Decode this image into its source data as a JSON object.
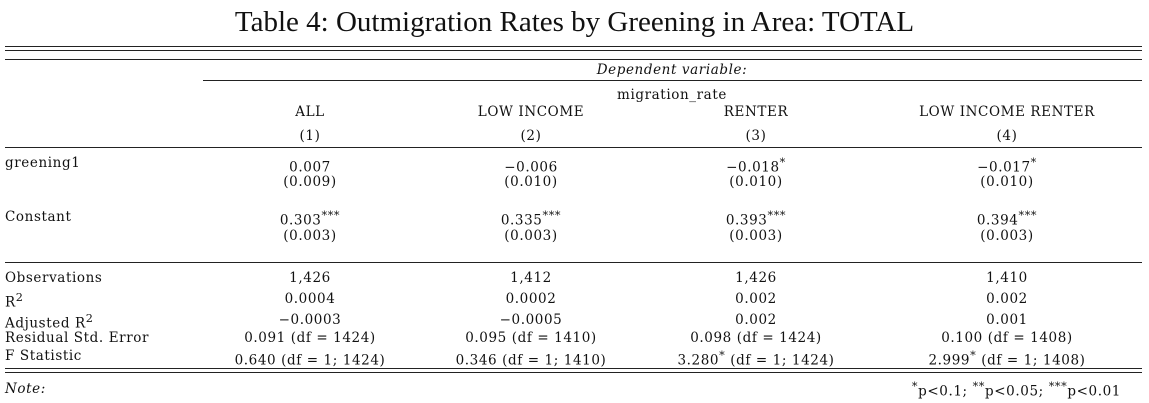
{
  "title": "Table 4: Outmigration Rates by Greening in Area: TOTAL",
  "dependent_variable_label": "Dependent variable:",
  "dependent_variable": "migration_rate",
  "columns": [
    {
      "name": "ALL",
      "number": "(1)"
    },
    {
      "name": "LOW INCOME",
      "number": "(2)"
    },
    {
      "name": "RENTER",
      "number": "(3)"
    },
    {
      "name": "LOW INCOME RENTER",
      "number": "(4)"
    }
  ],
  "coefficients": [
    {
      "label": "greening1",
      "estimates": [
        {
          "value": "0.007",
          "stars": "",
          "se": "(0.009)"
        },
        {
          "value": "−0.006",
          "stars": "",
          "se": "(0.010)"
        },
        {
          "value": "−0.018",
          "stars": "*",
          "se": "(0.010)"
        },
        {
          "value": "−0.017",
          "stars": "*",
          "se": "(0.010)"
        }
      ]
    },
    {
      "label": "Constant",
      "estimates": [
        {
          "value": "0.303",
          "stars": "***",
          "se": "(0.003)"
        },
        {
          "value": "0.335",
          "stars": "***",
          "se": "(0.003)"
        },
        {
          "value": "0.393",
          "stars": "***",
          "se": "(0.003)"
        },
        {
          "value": "0.394",
          "stars": "***",
          "se": "(0.003)"
        }
      ]
    }
  ],
  "statistics": [
    {
      "label": "Observations",
      "sup": "",
      "values": [
        "1,426",
        "1,412",
        "1,426",
        "1,410"
      ]
    },
    {
      "label": "R",
      "sup": "2",
      "values": [
        "0.0004",
        "0.0002",
        "0.002",
        "0.002"
      ]
    },
    {
      "label": "Adjusted R",
      "sup": "2",
      "values": [
        "−0.0003",
        "−0.0005",
        "0.002",
        "0.001"
      ]
    },
    {
      "label": "Residual Std. Error",
      "sup": "",
      "values": [
        "0.091 (df = 1424)",
        "0.095 (df = 1410)",
        "0.098 (df = 1424)",
        "0.100 (df = 1408)"
      ]
    },
    {
      "label": "F Statistic",
      "sup": "",
      "values": [
        {
          "value": "0.640",
          "stars": "",
          "rest": " (df = 1; 1424)"
        },
        {
          "value": "0.346",
          "stars": "",
          "rest": " (df = 1; 1410)"
        },
        {
          "value": "3.280",
          "stars": "*",
          "rest": " (df = 1; 1424)"
        },
        {
          "value": "2.999",
          "stars": "*",
          "rest": " (df = 1; 1408)"
        }
      ]
    }
  ],
  "note_label": "Note:",
  "significance_note": [
    {
      "stars": "*",
      "text": "p<0.1; "
    },
    {
      "stars": "**",
      "text": "p<0.05; "
    },
    {
      "stars": "***",
      "text": "p<0.01"
    }
  ]
}
